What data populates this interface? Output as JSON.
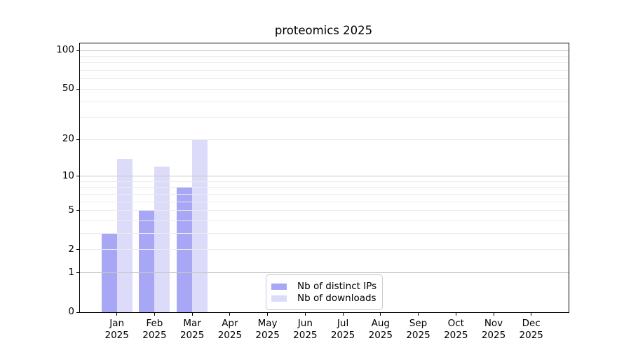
{
  "title": "proteomics 2025",
  "year_label": "2025",
  "months": [
    "Jan",
    "Feb",
    "Mar",
    "Apr",
    "May",
    "Jun",
    "Jul",
    "Aug",
    "Sep",
    "Oct",
    "Nov",
    "Dec"
  ],
  "y_axis": {
    "tick_labels": [
      "0",
      "1",
      "2",
      "5",
      "10",
      "20",
      "50",
      "100"
    ],
    "tick_values": [
      0,
      1,
      2,
      5,
      10,
      20,
      50,
      100
    ],
    "major_grid_values": [
      1,
      10,
      100
    ],
    "minor_grid_values": [
      2,
      3,
      4,
      5,
      6,
      7,
      8,
      9,
      20,
      30,
      40,
      50,
      60,
      70,
      80,
      90
    ]
  },
  "legend": {
    "items": [
      {
        "label": "Nb of distinct IPs",
        "color": "#a7a7f6"
      },
      {
        "label": "Nb of downloads",
        "color": "#dcdcfa"
      }
    ]
  },
  "colors": {
    "bar_distinct_ips": "#a7a7f6",
    "bar_downloads": "#dcdcfa",
    "major_grid": "#c6c6c6",
    "minor_grid": "#ebebeb",
    "axis": "#000000",
    "background": "#ffffff"
  },
  "chart_data": {
    "type": "bar",
    "title": "proteomics 2025",
    "categories": [
      "Jan 2025",
      "Feb 2025",
      "Mar 2025",
      "Apr 2025",
      "May 2025",
      "Jun 2025",
      "Jul 2025",
      "Aug 2025",
      "Sep 2025",
      "Oct 2025",
      "Nov 2025",
      "Dec 2025"
    ],
    "series": [
      {
        "name": "Nb of distinct IPs",
        "color": "#a7a7f6",
        "values": [
          3,
          5,
          8,
          0,
          0,
          0,
          0,
          0,
          0,
          0,
          0,
          0
        ]
      },
      {
        "name": "Nb of downloads",
        "color": "#dcdcfa",
        "values": [
          14,
          12,
          20,
          0,
          0,
          0,
          0,
          0,
          0,
          0,
          0,
          0
        ]
      }
    ],
    "xlabel": "",
    "ylabel": "",
    "yscale": "log1p",
    "y_ticks": [
      0,
      1,
      2,
      5,
      10,
      20,
      50,
      100
    ],
    "ylim": [
      0,
      112
    ],
    "grid": true,
    "legend_position": "lower-center"
  }
}
